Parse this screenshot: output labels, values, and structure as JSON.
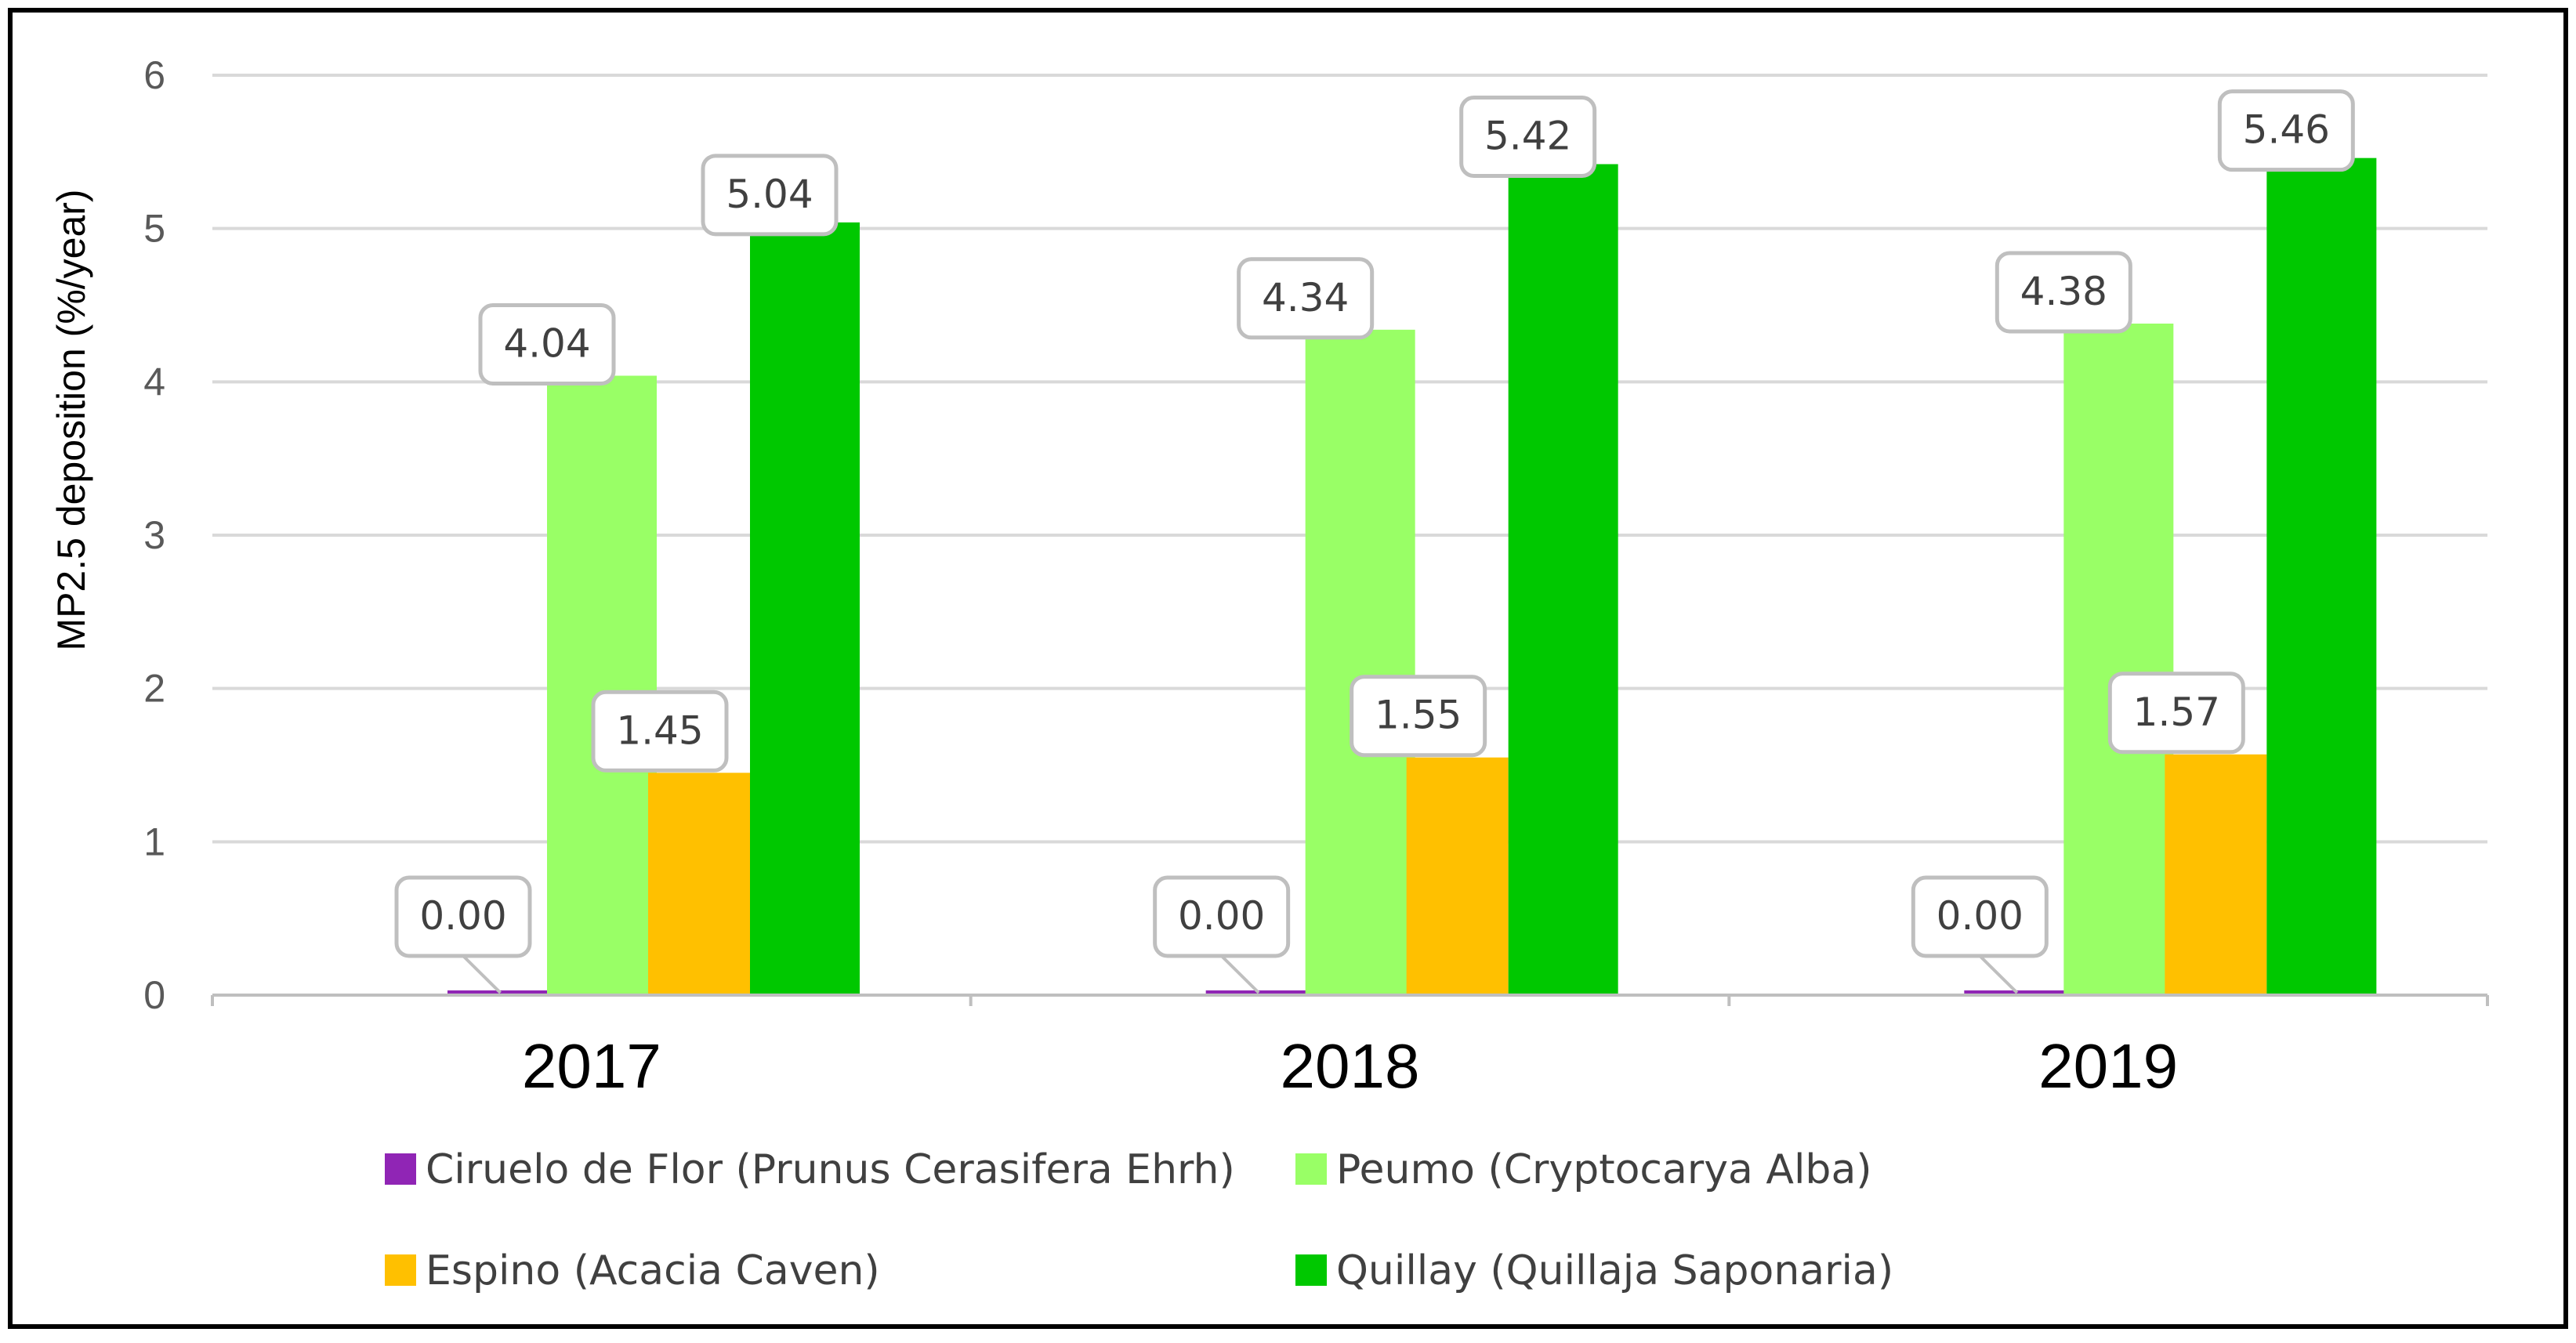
{
  "chart_data": {
    "type": "bar",
    "title": "",
    "xlabel": "",
    "ylabel": "MP2.5 deposition (%/year)",
    "ylim": [
      0,
      6
    ],
    "yticks": [
      0,
      1,
      2,
      3,
      4,
      5,
      6
    ],
    "grid": true,
    "legend_position": "bottom",
    "categories": [
      "2017",
      "2018",
      "2019"
    ],
    "series": [
      {
        "name": "Ciruelo de Flor (Prunus Cerasifera Ehrh)",
        "color": "#9025B5",
        "values": [
          0.0,
          0.0,
          0.0
        ],
        "labels": [
          "0.00",
          "0.00",
          "0.00"
        ]
      },
      {
        "name": "Peumo (Cryptocarya Alba)",
        "color": "#99FF66",
        "values": [
          4.04,
          4.34,
          4.38
        ],
        "labels": [
          "4.04",
          "4.34",
          "4.38"
        ]
      },
      {
        "name": "Espino (Acacia Caven)",
        "color": "#FFC000",
        "values": [
          1.45,
          1.55,
          1.57
        ],
        "labels": [
          "1.45",
          "1.55",
          "1.57"
        ]
      },
      {
        "name": "Quillay (Quillaja Saponaria)",
        "color": "#00C800",
        "values": [
          5.04,
          5.42,
          5.46
        ],
        "labels": [
          "5.04",
          "5.42",
          "5.46"
        ]
      }
    ]
  }
}
